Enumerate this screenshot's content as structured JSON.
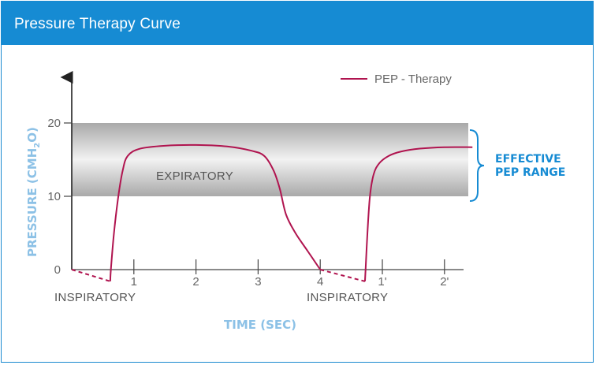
{
  "header": {
    "title": "Pressure Therapy Curve"
  },
  "colors": {
    "header_bg": "#168bd3",
    "curve": "#b0144f",
    "axis_title": "#8cc1e6",
    "range_label": "#168bd3",
    "band": "#c8c8c8"
  },
  "chart_data": {
    "type": "line",
    "xlabel": "TIME (SEC)",
    "ylabel": "PRESSURE (CMH",
    "ylabel_sub": "2",
    "ylabel_end": "O)",
    "yticks": [
      "0",
      "10",
      "20"
    ],
    "xticks": [
      "1",
      "2",
      "3",
      "4",
      "1'",
      "2'"
    ],
    "ylim": [
      0,
      20
    ],
    "band": {
      "from": 10,
      "to": 20,
      "label_line1": "EFFECTIVE",
      "label_line2": "PEP RANGE"
    },
    "legend": {
      "label": "PEP - Therapy",
      "position": "top-right"
    },
    "annotations": {
      "expiratory": "EXPIRATORY",
      "inspiratory_1": "INSPIRATORY",
      "inspiratory_2": "INSPIRATORY"
    },
    "series": [
      {
        "name": "PEP - Therapy",
        "solid": [
          {
            "x": [
              0.62,
              0.63,
              0.68,
              0.75,
              0.82,
              0.9,
              1.1,
              1.5,
              2.0,
              2.5,
              2.9,
              3.1,
              3.25,
              3.35,
              3.45,
              3.6,
              3.8,
              4.0
            ],
            "y": [
              -1.6,
              0,
              5,
              10,
              13.5,
              15.5,
              16.5,
              16.9,
              17.0,
              16.8,
              16.2,
              15.5,
              13.5,
              11,
              7.5,
              5,
              2.5,
              0
            ]
          },
          {
            "x": [
              4.72,
              4.73,
              4.76,
              4.8,
              4.86,
              4.95,
              5.1,
              5.3,
              5.6,
              6.0,
              6.45
            ],
            "y": [
              -1.6,
              0,
              5,
              10,
              13,
              14.5,
              15.5,
              16.1,
              16.5,
              16.7,
              16.7
            ]
          }
        ],
        "dashed": [
          {
            "x": [
              0,
              0.62
            ],
            "y": [
              0,
              -1.6
            ]
          },
          {
            "x": [
              4.0,
              4.72
            ],
            "y": [
              0,
              -1.6
            ]
          }
        ]
      }
    ]
  }
}
